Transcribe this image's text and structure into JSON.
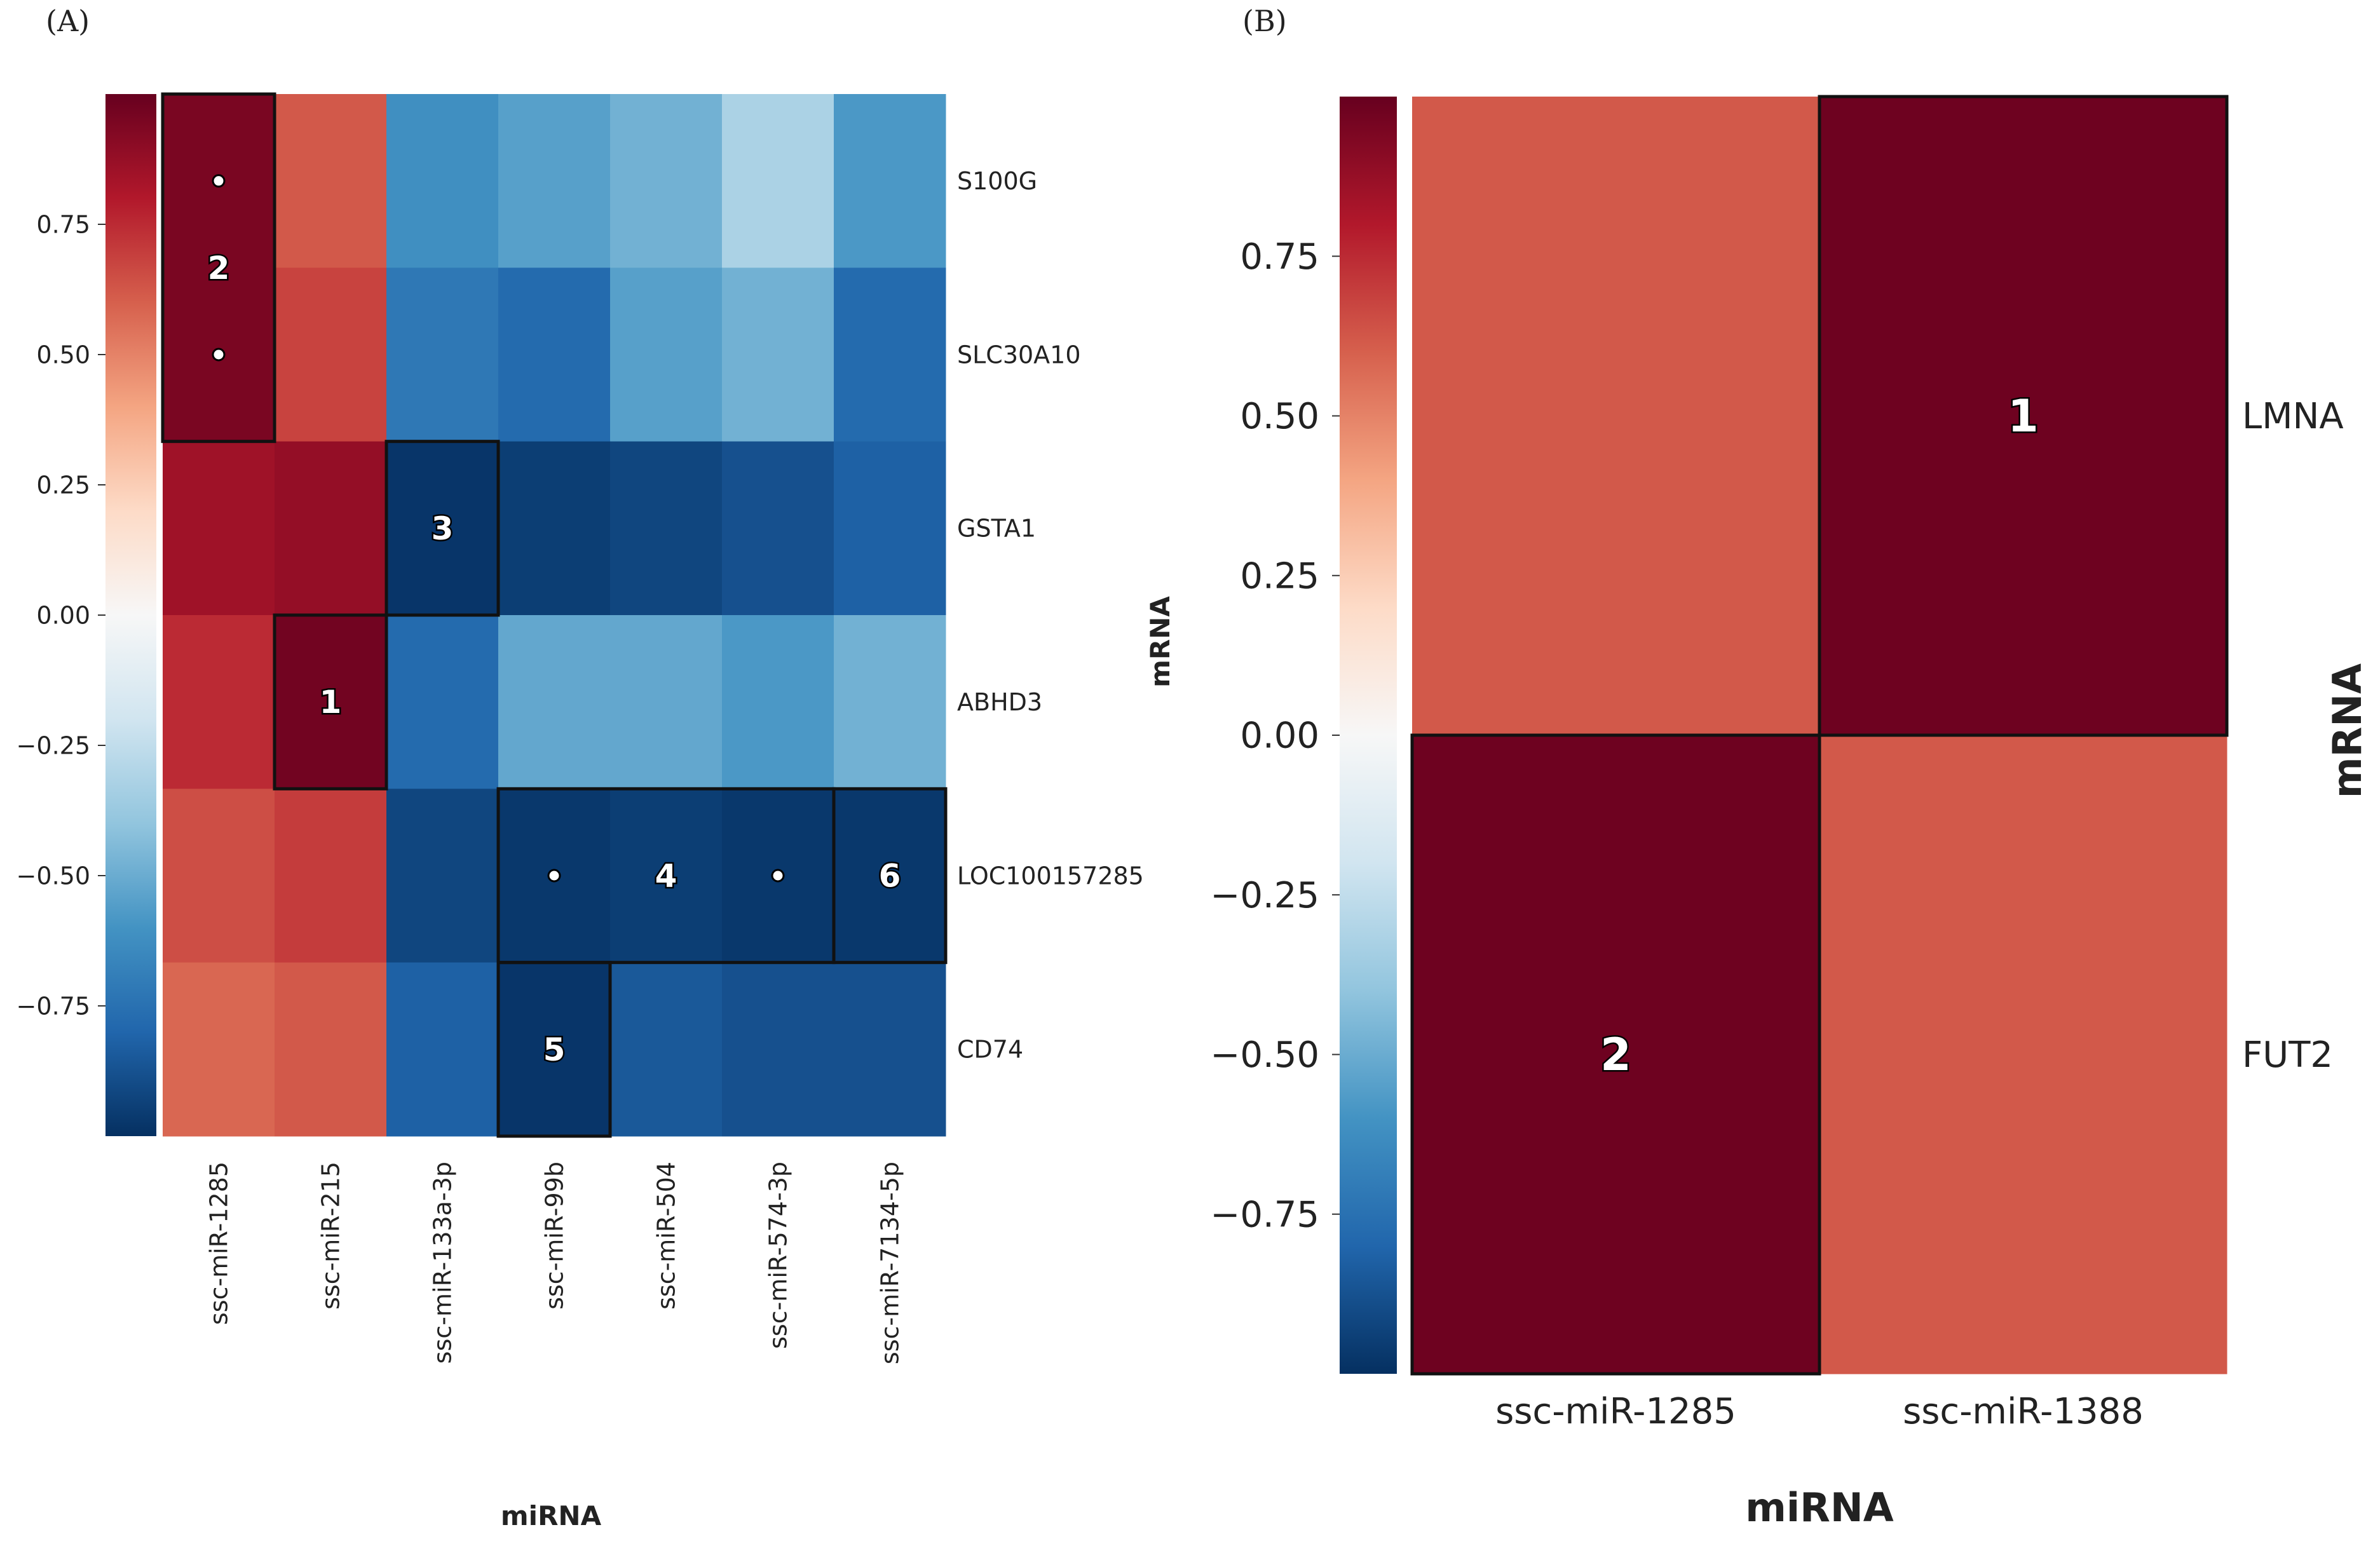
{
  "panels": {
    "a_label": "(A)",
    "b_label": "(B)"
  },
  "colors": {
    "cmap": [
      "#053061",
      "#2166ac",
      "#4393c3",
      "#92c5de",
      "#d1e5f0",
      "#f7f7f7",
      "#fddbc7",
      "#f4a582",
      "#d6604d",
      "#b2182b",
      "#67001f"
    ]
  },
  "chart_data": [
    {
      "type": "heatmap",
      "panel": "A",
      "xlabel": "miRNA",
      "ylabel": "mRNA",
      "categories_x": [
        "ssc-miR-1285",
        "ssc-miR-215",
        "ssc-miR-133a-3p",
        "ssc-miR-99b",
        "ssc-miR-504",
        "ssc-miR-574-3p",
        "ssc-miR-7134-5p"
      ],
      "categories_y": [
        "S100G",
        "SLC30A10",
        "GSTA1",
        "ABHD3",
        "LOC100157285",
        "CD74"
      ],
      "values": [
        [
          0.95,
          0.62,
          -0.62,
          -0.55,
          -0.48,
          -0.32,
          -0.58
        ],
        [
          0.95,
          0.68,
          -0.72,
          -0.78,
          -0.55,
          -0.48,
          -0.78
        ],
        [
          0.85,
          0.88,
          -0.98,
          -0.95,
          -0.92,
          -0.88,
          -0.82
        ],
        [
          0.75,
          0.97,
          -0.78,
          -0.52,
          -0.52,
          -0.58,
          -0.48
        ],
        [
          0.65,
          0.7,
          -0.92,
          -0.97,
          -0.95,
          -0.97,
          -0.97
        ],
        [
          0.58,
          0.62,
          -0.82,
          -0.98,
          -0.85,
          -0.88,
          -0.88
        ]
      ],
      "vmin": -1,
      "vmax": 1,
      "colorbar_ticks": [
        "0.75",
        "0.50",
        "0.25",
        "0.00",
        "−0.25",
        "−0.50",
        "−0.75"
      ],
      "colorbar_tick_values": [
        0.75,
        0.5,
        0.25,
        0.0,
        -0.25,
        -0.5,
        -0.75
      ],
      "boxes": [
        {
          "label": "2",
          "row": 0,
          "col": 0,
          "rows": 2,
          "cols": 1
        },
        {
          "label": "3",
          "row": 2,
          "col": 2,
          "rows": 1,
          "cols": 1
        },
        {
          "label": "1",
          "row": 3,
          "col": 1,
          "rows": 1,
          "cols": 1
        },
        {
          "label": "4",
          "row": 4,
          "col": 3,
          "rows": 1,
          "cols": 3
        },
        {
          "label": "6",
          "row": 4,
          "col": 6,
          "rows": 1,
          "cols": 1
        },
        {
          "label": "5",
          "row": 5,
          "col": 3,
          "rows": 1,
          "cols": 1
        }
      ],
      "dots": [
        [
          0,
          0
        ],
        [
          1,
          0
        ],
        [
          4,
          3
        ],
        [
          4,
          5
        ]
      ]
    },
    {
      "type": "heatmap",
      "panel": "B",
      "xlabel": "miRNA",
      "ylabel": "mRNA",
      "categories_x": [
        "ssc-miR-1285",
        "ssc-miR-1388"
      ],
      "categories_y": [
        "LMNA",
        "FUT2"
      ],
      "values": [
        [
          0.62,
          0.98
        ],
        [
          0.98,
          0.62
        ]
      ],
      "vmin": -1,
      "vmax": 1,
      "colorbar_ticks": [
        "0.75",
        "0.50",
        "0.25",
        "0.00",
        "−0.25",
        "−0.50",
        "−0.75"
      ],
      "colorbar_tick_values": [
        0.75,
        0.5,
        0.25,
        0.0,
        -0.25,
        -0.5,
        -0.75
      ],
      "boxes": [
        {
          "label": "1",
          "row": 0,
          "col": 1,
          "rows": 1,
          "cols": 1
        },
        {
          "label": "2",
          "row": 1,
          "col": 0,
          "rows": 1,
          "cols": 1
        }
      ],
      "dots": []
    }
  ]
}
